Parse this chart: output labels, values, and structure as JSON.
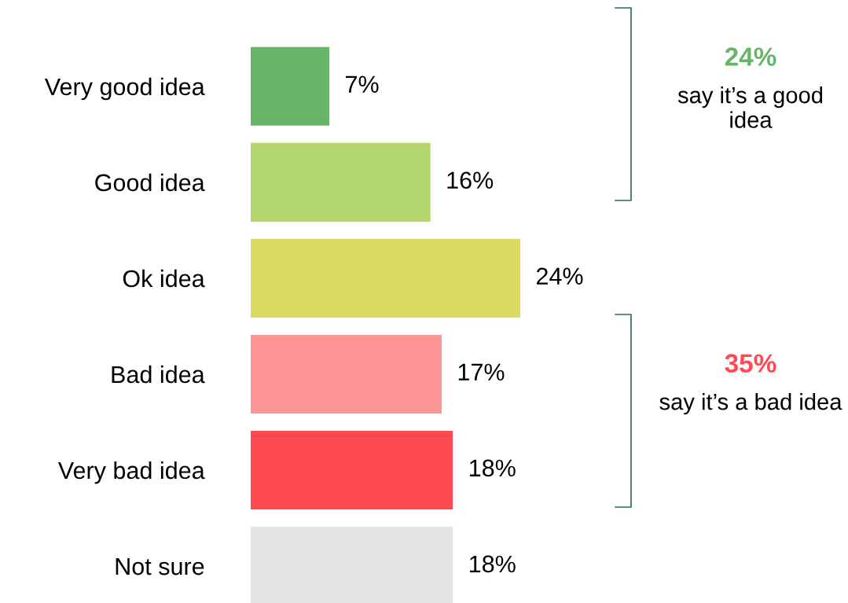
{
  "chart_data": {
    "type": "bar",
    "orientation": "horizontal",
    "categories": [
      "Very good idea",
      "Good idea",
      "Ok idea",
      "Bad idea",
      "Very bad idea",
      "Not sure"
    ],
    "values": [
      7,
      16,
      24,
      17,
      18,
      18
    ],
    "colors": [
      "#66b56a",
      "#b2d56e",
      "#dbda62",
      "#fd9496",
      "#fe4a51",
      "#e3e4e3"
    ],
    "value_labels": [
      "7%",
      "16%",
      "24%",
      "17%",
      "18%",
      "18%"
    ],
    "tick_labels": "y",
    "grid": false,
    "legend": false,
    "annotations": [
      "24%",
      "say it’s a good idea",
      "35%",
      "say it’s a bad idea"
    ]
  }
}
